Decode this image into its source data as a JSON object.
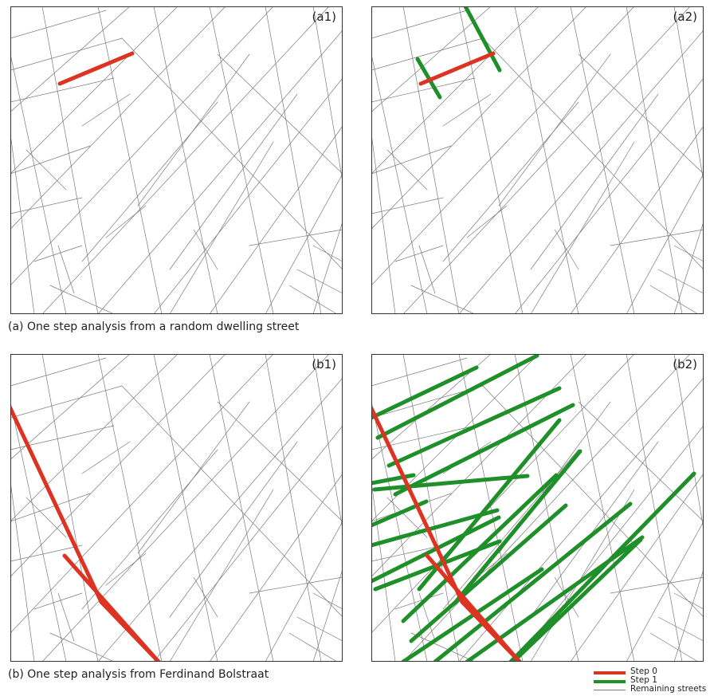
{
  "panels": [
    {
      "id": "a1",
      "label": "(a1)"
    },
    {
      "id": "a2",
      "label": "(a2)"
    },
    {
      "id": "b1",
      "label": "(b1)"
    },
    {
      "id": "b2",
      "label": "(b2)"
    }
  ],
  "captions": {
    "a": "(a) One step analysis from a random dwelling street",
    "b": "(b) One step analysis from Ferdinand Bolstraat"
  },
  "legend": {
    "step0": "Step 0",
    "step1": "Step 1",
    "remaining": "Remaining streets"
  },
  "colors": {
    "step0": "#dd3322",
    "step1": "#1f8f2a",
    "remaining": "#7a7a7a",
    "frame": "#333333"
  }
}
